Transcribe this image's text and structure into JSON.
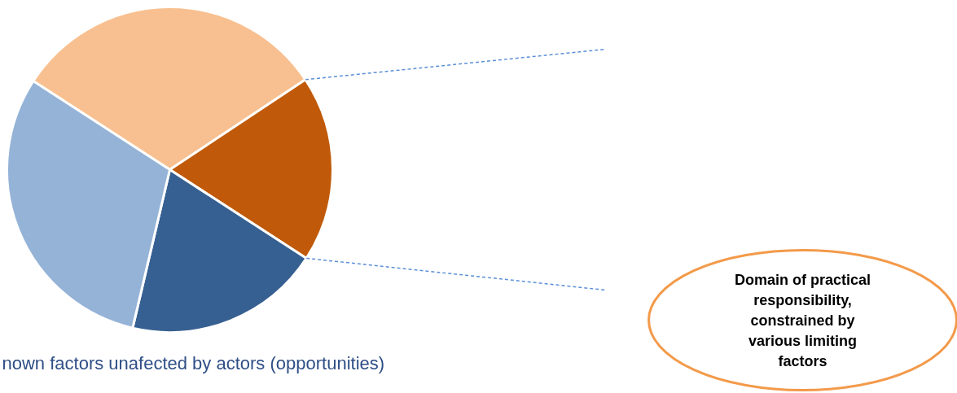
{
  "chart_data": {
    "type": "pie",
    "categories": [
      null,
      null,
      null,
      null
    ],
    "values": [
      31.5,
      18.5,
      19.5,
      30.5
    ],
    "colors": [
      "#f8c090",
      "#c05a0a",
      "#376092",
      "#95b3d7"
    ],
    "annotations": [
      "Domain of practical\nresponsibility,\nconstrained by\nvarious limiting\nfactors",
      "nown factors unafected by actors (opportunities)"
    ]
  }
}
